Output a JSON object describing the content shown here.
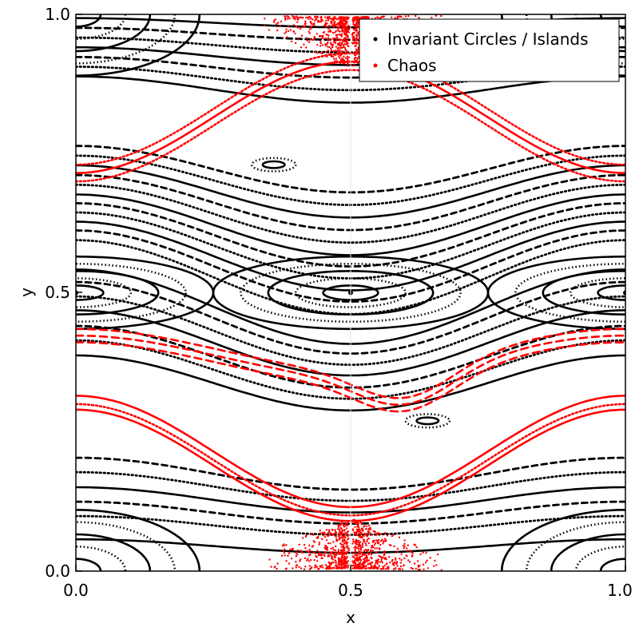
{
  "chart_data": {
    "type": "scatter",
    "title": "",
    "xlabel": "x",
    "ylabel": "y",
    "xlim": [
      0.0,
      1.0
    ],
    "ylim": [
      0.0,
      1.0
    ],
    "x_ticks": [
      "0.0",
      "0.5",
      "1.0"
    ],
    "y_ticks": [
      "0.0",
      "0.5",
      "1.0"
    ],
    "grid": false,
    "legend_position": "top-right",
    "series": [
      {
        "name": "Invariant Circles / Islands",
        "color": "#000000",
        "marker": "small dot",
        "structures": {
          "tori_baselines_y": [
            0.045,
            0.082,
            0.105,
            0.128,
            0.152,
            0.175,
            0.338,
            0.362,
            0.385,
            0.41,
            0.432,
            0.455,
            0.475,
            0.528,
            0.548,
            0.566,
            0.585,
            0.604,
            0.622,
            0.642,
            0.662,
            0.682,
            0.702,
            0.722,
            0.865,
            0.885,
            0.905,
            0.925,
            0.945,
            0.965,
            0.985
          ],
          "island_centers": [
            {
              "x": 0.5,
              "y": 0.5
            },
            {
              "x": 0.0,
              "y": 0.5
            },
            {
              "x": 1.0,
              "y": 0.5
            },
            {
              "x": 0.0,
              "y": 0.0
            },
            {
              "x": 1.0,
              "y": 0.0
            },
            {
              "x": 0.0,
              "y": 1.0
            },
            {
              "x": 1.0,
              "y": 1.0
            },
            {
              "x": 0.64,
              "y": 0.27
            },
            {
              "x": 0.36,
              "y": 0.73
            }
          ]
        }
      },
      {
        "name": "Chaos",
        "color": "#ff0000",
        "marker": "small dot",
        "structures": {
          "chaotic_layer_baselines_y": [
            0.19,
            0.2,
            0.215,
            0.8,
            0.815,
            0.83
          ],
          "chaotic_hotspots": [
            {
              "x": 0.5,
              "y": 0.0
            },
            {
              "x": 0.5,
              "y": 1.0
            }
          ],
          "dashed_chaotic_band_y": 0.4
        }
      }
    ]
  }
}
